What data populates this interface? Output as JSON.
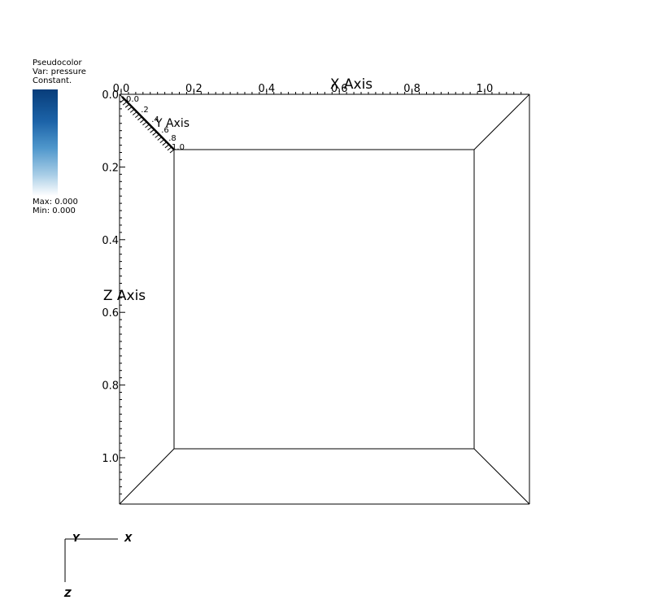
{
  "legend": {
    "plot_type": "Pseudocolor",
    "var_label": "Var: pressure",
    "note": "Constant.",
    "max_label": "Max:  0.000",
    "min_label": "Min:  0.000",
    "colorbar_top": "#083d7a",
    "colorbar_bottom": "#ffffff"
  },
  "chart_data": {
    "type": "3d-box",
    "x_axis": {
      "label": "X Axis",
      "range": [
        0.0,
        1.1
      ],
      "ticks": [
        "0.0",
        "0.2",
        "0.4",
        "0.6",
        "0.8",
        "1.0"
      ]
    },
    "z_axis": {
      "label": "Z Axis",
      "range": [
        0.0,
        1.1
      ],
      "ticks": [
        "0.0",
        "0.2",
        "0.4",
        "0.6",
        "0.8",
        "1.0"
      ]
    },
    "y_axis": {
      "label": "Y Axis",
      "range": [
        0.0,
        1.0
      ],
      "ticks": [
        "0.0",
        ".2",
        ".4",
        ".6",
        ".8",
        "1.0"
      ]
    },
    "values": []
  },
  "triad": {
    "x": "X",
    "y": "Y",
    "z": "Z"
  }
}
